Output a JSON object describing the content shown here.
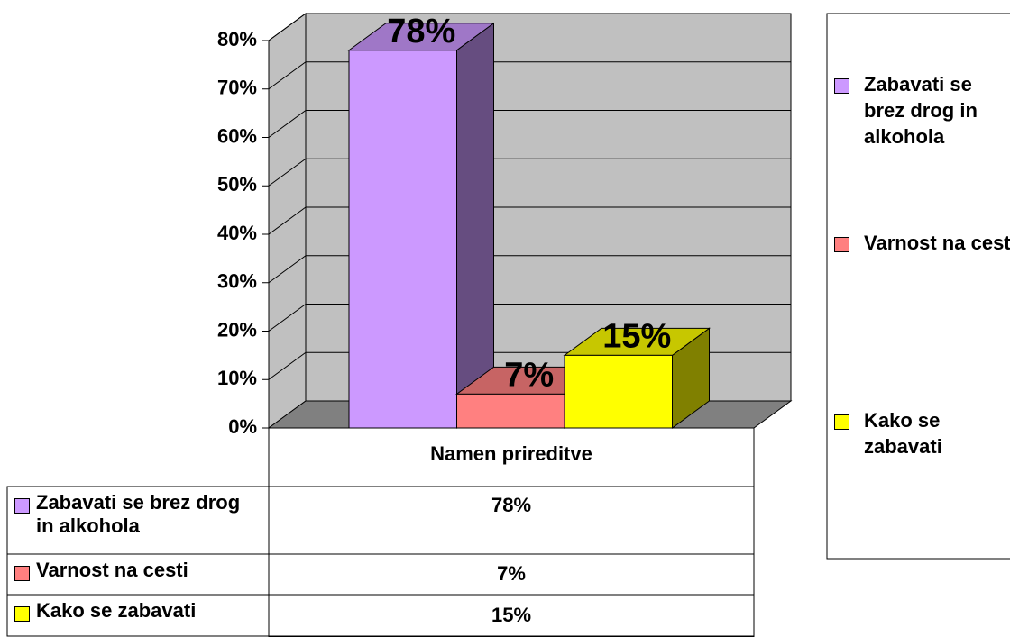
{
  "chart_data": {
    "type": "bar3d",
    "categories": [
      "Namen prireditve"
    ],
    "series": [
      {
        "name": "Zabavati se brez drog in alkohola",
        "color": "#cc99ff",
        "values": [
          78
        ],
        "value_labels": [
          "78%"
        ]
      },
      {
        "name": "Varnost na cesti",
        "color": "#ff8080",
        "values": [
          7
        ],
        "value_labels": [
          "7%"
        ]
      },
      {
        "name": "Kako se zabavati",
        "color": "#ffff00",
        "values": [
          15
        ],
        "value_labels": [
          "15%"
        ]
      }
    ],
    "ylim": [
      0,
      80
    ],
    "yticks": [
      {
        "value": 0,
        "label": "0%"
      },
      {
        "value": 10,
        "label": "10%"
      },
      {
        "value": 20,
        "label": "20%"
      },
      {
        "value": 30,
        "label": "30%"
      },
      {
        "value": 40,
        "label": "40%"
      },
      {
        "value": 50,
        "label": "50%"
      },
      {
        "value": 60,
        "label": "60%"
      },
      {
        "value": 70,
        "label": "70%"
      },
      {
        "value": 80,
        "label": "80%"
      }
    ],
    "grid": true,
    "legend": "right"
  }
}
